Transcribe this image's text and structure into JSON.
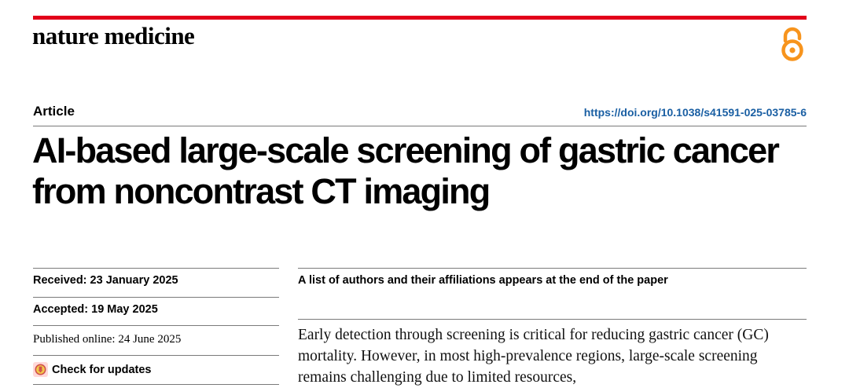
{
  "header": {
    "journal_name": "nature medicine",
    "open_access_icon": "open-access-icon",
    "accent_color": "#e2001a",
    "oa_color": "#f7941d"
  },
  "article": {
    "type_label": "Article",
    "doi": "https://doi.org/10.1038/s41591-025-03785-6",
    "title": "AI-based large-scale screening of gastric cancer from noncontrast CT imaging"
  },
  "dates": {
    "received": "Received: 23 January 2025",
    "accepted": "Accepted: 19 May 2025",
    "published": "Published online: 24 June 2025",
    "check_updates": "Check for updates",
    "check_updates_icon": "check-updates-icon"
  },
  "authors_note": "A list of authors and their affiliations appears at the end of the paper",
  "abstract": {
    "text": "Early detection through screening is critical for reducing gastric cancer (GC) mortality. However, in most high-prevalence regions, large-scale screening remains challenging due to limited resources,"
  }
}
